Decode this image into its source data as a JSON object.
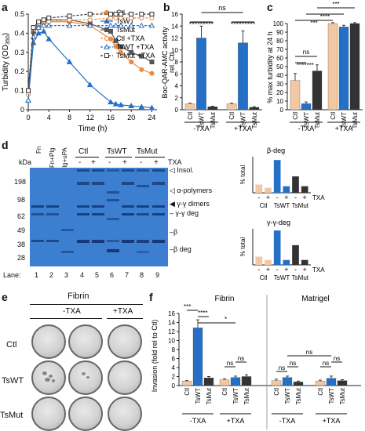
{
  "panel_labels": {
    "a": "a",
    "b": "b",
    "c": "c",
    "d": "d",
    "e": "e",
    "f": "f"
  },
  "colors": {
    "ctl": "#f08a3c",
    "tswt": "#2470c7",
    "tsmut": "#555555",
    "ctl_light": "#f2c7a3",
    "tswt_light": "#7fb2e8",
    "tsmut_dark": "#333333",
    "gel_bg": "#3c7fd1",
    "gel_band": "#12306e"
  },
  "chart_data": [
    {
      "id": "a",
      "type": "line",
      "xlabel": "Time (h)",
      "ylabel": "Turbidity (OD",
      "ylabel_sub": "350",
      "ylabel_end": ")",
      "xlim": [
        0,
        25
      ],
      "ylim": [
        0,
        0.5
      ],
      "xticks": [
        "0",
        "4",
        "8",
        "12",
        "16",
        "20",
        "24"
      ],
      "yticks": [
        "0",
        "0.1",
        "0.2",
        "0.3",
        "0.4",
        "0.5"
      ],
      "series": [
        {
          "name": "Ctl",
          "color": "#f08a3c",
          "marker": "circle",
          "fill": true,
          "dash": false,
          "x": [
            0,
            1,
            2,
            3,
            4,
            8,
            12,
            16,
            17,
            18,
            20,
            22,
            24
          ],
          "y": [
            0.1,
            0.4,
            0.44,
            0.45,
            0.46,
            0.46,
            0.44,
            0.37,
            0.33,
            0.3,
            0.25,
            0.21,
            0.19
          ]
        },
        {
          "name": "TsWT",
          "color": "#2470c7",
          "marker": "triangle",
          "fill": true,
          "dash": false,
          "x": [
            0,
            1,
            2,
            3,
            4,
            8,
            12,
            16,
            17,
            18,
            20,
            22,
            24
          ],
          "y": [
            0.05,
            0.35,
            0.4,
            0.41,
            0.37,
            0.25,
            0.13,
            0.04,
            0.03,
            0.025,
            0.02,
            0.015,
            0.01
          ]
        },
        {
          "name": "TsMut",
          "color": "#555555",
          "marker": "square",
          "fill": true,
          "dash": false,
          "x": [
            0,
            1,
            2,
            3,
            4,
            8,
            12,
            16,
            17,
            18,
            20,
            22,
            24
          ],
          "y": [
            0.1,
            0.41,
            0.45,
            0.46,
            0.47,
            0.47,
            0.45,
            0.41,
            0.36,
            0.33,
            0.3,
            0.28,
            0.25
          ]
        },
        {
          "name": "Ctl +TXA",
          "color": "#f08a3c",
          "marker": "circle",
          "fill": false,
          "dash": true,
          "x": [
            0,
            1,
            2,
            3,
            4,
            8,
            12,
            16,
            17,
            18,
            20,
            22,
            24
          ],
          "y": [
            0.08,
            0.42,
            0.45,
            0.46,
            0.46,
            0.47,
            0.47,
            0.48,
            0.48,
            0.48,
            0.48,
            0.48,
            0.48
          ]
        },
        {
          "name": "TsWT +TXA",
          "color": "#2470c7",
          "marker": "triangle",
          "fill": false,
          "dash": true,
          "x": [
            0,
            1,
            2,
            3,
            4,
            8,
            12,
            16,
            17,
            18,
            20,
            22,
            24
          ],
          "y": [
            0.05,
            0.38,
            0.43,
            0.44,
            0.44,
            0.44,
            0.44,
            0.44,
            0.44,
            0.44,
            0.44,
            0.44,
            0.44
          ]
        },
        {
          "name": "TsMut +TXA",
          "color": "#333333",
          "marker": "square",
          "fill": false,
          "dash": true,
          "x": [
            0,
            1,
            2,
            3,
            4,
            8,
            12,
            16,
            17,
            18,
            20,
            22,
            24
          ],
          "y": [
            0.1,
            0.43,
            0.46,
            0.47,
            0.48,
            0.49,
            0.5,
            0.5,
            0.5,
            0.5,
            0.5,
            0.5,
            0.5
          ]
        }
      ]
    },
    {
      "id": "b",
      "type": "bar",
      "ylabel": "Boc-QAR-AMC activity",
      "ylabel2": "rel. Ctl",
      "ylim": [
        0,
        16
      ],
      "yticks": [
        "0",
        "2",
        "4",
        "6",
        "8",
        "10",
        "12",
        "14",
        "16"
      ],
      "groups": [
        "-TXA",
        "+TXA"
      ],
      "categories": [
        "Ctl",
        "TsWT",
        "TsMut",
        "Ctl",
        "TsWT",
        "TsMut"
      ],
      "values": [
        1,
        12,
        0.5,
        1,
        11.2,
        0.4
      ],
      "errors": [
        0.1,
        2,
        0.1,
        0.1,
        2,
        0.1
      ],
      "bar_colors": [
        "#f2c7a3",
        "#2470c7",
        "#333333",
        "#f2c7a3",
        "#2470c7",
        "#333333"
      ],
      "annotations": {
        "ns": "ns",
        "stars": "*********"
      }
    },
    {
      "id": "c",
      "type": "bar",
      "ylabel": "% max turbidity at 24 h",
      "ylim": [
        0,
        100
      ],
      "yticks": [
        "0",
        "10",
        "20",
        "30",
        "40",
        "50",
        "60",
        "70",
        "80",
        "90",
        "100"
      ],
      "groups": [
        "-TXA",
        "+TXA"
      ],
      "categories": [
        "Ctl",
        "TsWT",
        "TsMut",
        "Ctl",
        "TsWT",
        "TsMut"
      ],
      "values": [
        34,
        7,
        45,
        100,
        96,
        100
      ],
      "errors": [
        8,
        2,
        7,
        1,
        2,
        1
      ],
      "bar_colors": [
        "#f2c7a3",
        "#2470c7",
        "#333333",
        "#f2c7a3",
        "#2470c7",
        "#333333"
      ],
      "annotations": {
        "ns": "ns",
        "s3": "***",
        "s4": "****",
        "s3b": "***",
        "s4b": "****",
        "s6": "*******"
      }
    },
    {
      "id": "d_beta",
      "type": "bar",
      "title": "β-deg",
      "ylabel": "% total",
      "ylim": [
        0,
        22
      ],
      "categories": [
        "Ctl -",
        "Ctl +",
        "TsWT -",
        "TsWT +",
        "TsMut -",
        "TsMut +"
      ],
      "values": [
        5,
        3,
        20,
        4,
        10,
        4
      ],
      "bar_colors": [
        "#f2c7a3",
        "#f2c7a3",
        "#2470c7",
        "#2470c7",
        "#333333",
        "#333333"
      ],
      "signs": [
        "-",
        "+",
        "-",
        "+",
        "-",
        "+"
      ],
      "group_labels": [
        "Ctl",
        "TsWT",
        "TsMut"
      ],
      "txa_label": "TXA"
    },
    {
      "id": "d_gamma",
      "type": "bar",
      "title": "γ-γ-deg",
      "ylabel": "% total",
      "ylim": [
        0,
        22
      ],
      "categories": [
        "Ctl -",
        "Ctl +",
        "TsWT -",
        "TsWT +",
        "TsMut -",
        "TsMut +"
      ],
      "values": [
        5,
        3,
        21,
        3,
        12,
        3
      ],
      "bar_colors": [
        "#f2c7a3",
        "#f2c7a3",
        "#2470c7",
        "#2470c7",
        "#333333",
        "#333333"
      ],
      "signs": [
        "-",
        "+",
        "-",
        "+",
        "-",
        "+"
      ],
      "group_labels": [
        "Ctl",
        "TsWT",
        "TsMut"
      ],
      "txa_label": "TXA"
    },
    {
      "id": "f",
      "type": "bar",
      "ylabel": "Invasion (fold rel to Ctl)",
      "ylim": [
        0,
        16
      ],
      "yticks": [
        "0",
        "2",
        "4",
        "6",
        "8",
        "10",
        "12",
        "14",
        "16"
      ],
      "section_titles": [
        "Fibrin",
        "Matrigel"
      ],
      "groups": [
        "-TXA",
        "+TXA",
        "-TXA",
        "+TXA"
      ],
      "categories": [
        "Ctl",
        "TsWT",
        "TsMut",
        "Ctl",
        "TsWT",
        "TsMut",
        "Ctl",
        "TsWT",
        "TsMut",
        "Ctl",
        "TsWT",
        "TsMut"
      ],
      "values": [
        1,
        12.8,
        1.7,
        1.3,
        1.8,
        2,
        1.1,
        1.8,
        0.8,
        1,
        1.6,
        1.1
      ],
      "errors": [
        0.1,
        1.8,
        0.3,
        0.2,
        0.3,
        0.4,
        0.3,
        0.3,
        0.2,
        0.2,
        0.5,
        0.2
      ],
      "bar_colors": [
        "#f2c7a3",
        "#2470c7",
        "#333333",
        "#f2c7a3",
        "#2470c7",
        "#333333",
        "#f2c7a3",
        "#2470c7",
        "#333333",
        "#f2c7a3",
        "#2470c7",
        "#333333"
      ],
      "annotations": {
        "s3": "***",
        "s4": "****",
        "s1": "*",
        "ns": "ns"
      }
    }
  ],
  "panel_d": {
    "kda": "kDa",
    "mw": [
      "198",
      "98",
      "62",
      "49",
      "38",
      "28"
    ],
    "lane_label": "Lane:",
    "lane_numbers": [
      "1",
      "2",
      "3",
      "4",
      "5",
      "6",
      "7",
      "8",
      "9"
    ],
    "lane_headers": [
      "Fn",
      "Fn+Plg",
      "Fn+Plg+uPA"
    ],
    "group_headers": [
      "Ctl",
      "TsWT",
      "TsMut"
    ],
    "txa_signs": [
      "-",
      "+",
      "-",
      "+",
      "-",
      "+"
    ],
    "txa_label": "TXA",
    "band_labels": [
      "Insol.",
      "α-polymers",
      "γ-γ dimers",
      "γ-γ deg",
      "β",
      "β deg"
    ]
  },
  "panel_e": {
    "title": "Fibrin",
    "col_headers": [
      "-TXA",
      "+TXA"
    ],
    "row_labels": [
      "Ctl",
      "TsWT",
      "TsMut"
    ]
  }
}
